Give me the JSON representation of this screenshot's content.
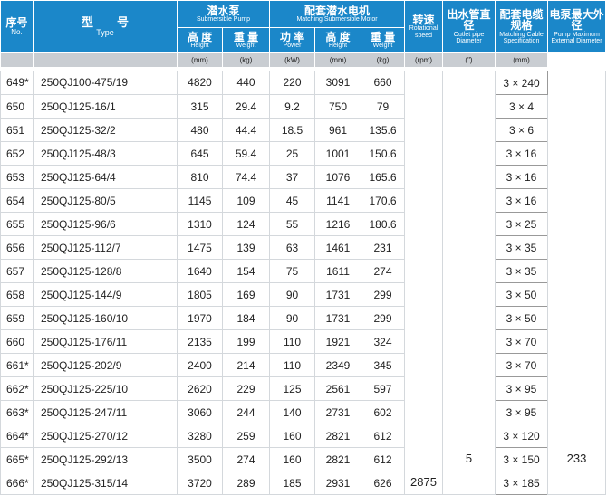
{
  "header": {
    "no": {
      "zh": "序号",
      "en": "No."
    },
    "type": {
      "zh": "型　　号",
      "en": "Type"
    },
    "pump": {
      "zh": "潜水泵",
      "en": "Submersible Pump"
    },
    "motor": {
      "zh": "配套潜水电机",
      "en": "Matching Submersible Motor"
    },
    "speed": {
      "zh": "转速",
      "en": "Rotational speed"
    },
    "outlet": {
      "zh": "出水管直径",
      "en": "Outlet pipe Diameter"
    },
    "cable": {
      "zh": "配套电缆规格",
      "en": "Matching Cable Specification"
    },
    "diameter": {
      "zh": "电泵最大外径",
      "en": "Pump Maximum External Diameter"
    },
    "sub": [
      {
        "zh": "高 度",
        "en": "Height"
      },
      {
        "zh": "重 量",
        "en": "Weight"
      },
      {
        "zh": "功 率",
        "en": "Power"
      },
      {
        "zh": "高 度",
        "en": "Height"
      },
      {
        "zh": "重 量",
        "en": "Weight"
      }
    ]
  },
  "units": [
    "(mm)",
    "(kg)",
    "(kW)",
    "(mm)",
    "(kg)",
    "(rpm)",
    "(\")",
    "(mm)"
  ],
  "rows": [
    [
      "649*",
      "250QJ100-475/19",
      4820,
      440,
      220,
      3091,
      660,
      "3 × 240"
    ],
    [
      "650",
      "250QJ125-16/1",
      315,
      29.4,
      9.2,
      750,
      79,
      "3 × 4"
    ],
    [
      "651",
      "250QJ125-32/2",
      480,
      44.4,
      18.5,
      961,
      135.6,
      "3 × 6"
    ],
    [
      "652",
      "250QJ125-48/3",
      645,
      59.4,
      25,
      1001,
      150.6,
      "3 × 16"
    ],
    [
      "653",
      "250QJ125-64/4",
      810,
      74.4,
      37,
      1076,
      165.6,
      "3 × 16"
    ],
    [
      "654",
      "250QJ125-80/5",
      1145,
      109,
      45,
      1141,
      170.6,
      "3 × 16"
    ],
    [
      "655",
      "250QJ125-96/6",
      1310,
      124,
      55,
      1216,
      180.6,
      "3 × 25"
    ],
    [
      "656",
      "250QJ125-112/7",
      1475,
      139,
      63,
      1461,
      231,
      "3 × 35"
    ],
    [
      "657",
      "250QJ125-128/8",
      1640,
      154,
      75,
      1611,
      274,
      "3 × 35"
    ],
    [
      "658",
      "250QJ125-144/9",
      1805,
      169,
      90,
      1731,
      299,
      "3 × 50"
    ],
    [
      "659",
      "250QJ125-160/10",
      1970,
      184,
      90,
      1731,
      299,
      "3 × 50"
    ],
    [
      "660",
      "250QJ125-176/11",
      2135,
      199,
      110,
      1921,
      324,
      "3 × 70"
    ],
    [
      "661*",
      "250QJ125-202/9",
      2400,
      214,
      110,
      2349,
      345,
      "3 × 70"
    ],
    [
      "662*",
      "250QJ125-225/10",
      2620,
      229,
      125,
      2561,
      597,
      "3 × 95"
    ],
    [
      "663*",
      "250QJ125-247/11",
      3060,
      244,
      140,
      2731,
      602,
      "3 × 95"
    ],
    [
      "664*",
      "250QJ125-270/12",
      3280,
      259,
      160,
      2821,
      612,
      "3 × 120"
    ],
    [
      "665*",
      "250QJ125-292/13",
      3500,
      274,
      160,
      2821,
      612,
      "3 × 150"
    ],
    [
      "666*",
      "250QJ125-315/14",
      3720,
      289,
      185,
      2931,
      626,
      "3 × 185"
    ]
  ],
  "merged": {
    "speed": 2875,
    "outlet": 5,
    "diameter": 233
  }
}
